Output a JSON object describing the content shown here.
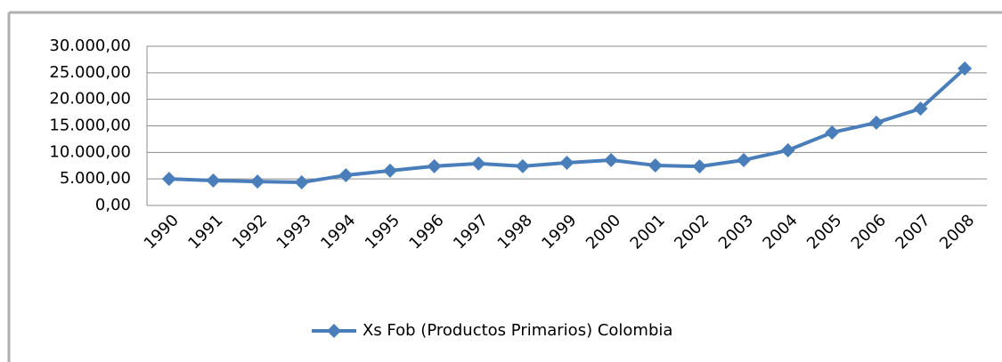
{
  "chart_data": {
    "type": "line",
    "categories": [
      "1990",
      "1991",
      "1992",
      "1993",
      "1994",
      "1995",
      "1996",
      "1997",
      "1998",
      "1999",
      "2000",
      "2001",
      "2002",
      "2003",
      "2004",
      "2005",
      "2006",
      "2007",
      "2008"
    ],
    "series": [
      {
        "name": "Xs Fob (Productos Primarios) Colombia",
        "color": "#4a7ebb",
        "values": [
          5000,
          4700,
          4500,
          4350,
          5700,
          6550,
          7400,
          7900,
          7400,
          8050,
          8550,
          7550,
          7350,
          8550,
          10400,
          13750,
          15600,
          18250,
          25800
        ]
      }
    ],
    "ylim": [
      0,
      30000
    ],
    "yticks": [
      {
        "value": 0,
        "label": "0,00"
      },
      {
        "value": 5000,
        "label": "5.000,00"
      },
      {
        "value": 10000,
        "label": "10.000,00"
      },
      {
        "value": 15000,
        "label": "15.000,00"
      },
      {
        "value": 20000,
        "label": "20.000,00"
      },
      {
        "value": 25000,
        "label": "25.000,00"
      },
      {
        "value": 30000,
        "label": "30.000,00"
      }
    ],
    "grid": true,
    "legend": "bottom"
  }
}
